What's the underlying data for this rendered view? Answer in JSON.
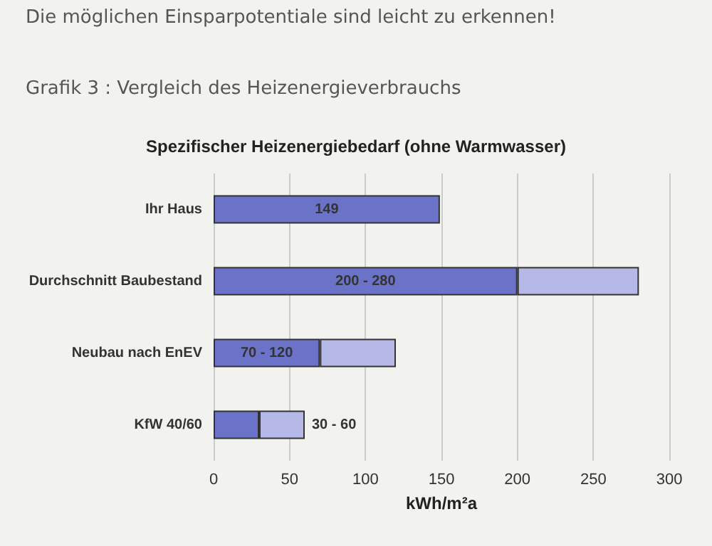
{
  "chart_data": {
    "type": "bar",
    "orientation": "horizontal",
    "stacked": true,
    "title": "Spezifischer Heizenergiebedarf (ohne Warmwasser)",
    "annotations": [
      "Die möglichen Einsparpotentiale sind leicht zu erkennen!",
      "Grafik 3 : Vergleich des Heizenergieverbrauchs"
    ],
    "xlabel": "kWh/m²a",
    "categories": [
      "Ihr Haus",
      "Durchschnitt Baubestand",
      "Neubau nach EnEV",
      "KfW 40/60"
    ],
    "series": [
      {
        "color": "#6b73c9",
        "values": [
          149,
          200,
          70,
          30
        ],
        "value_labels": [
          "149",
          "200 - 280",
          "70 - 120",
          null
        ]
      },
      {
        "color": "#b6b9e8",
        "values": [
          null,
          80,
          50,
          30
        ],
        "value_labels": [
          null,
          null,
          null,
          "30 - 60"
        ]
      }
    ],
    "xlim": [
      0,
      300
    ],
    "xticks": [
      0,
      50,
      100,
      150,
      200,
      250,
      300
    ],
    "grid": "x"
  }
}
